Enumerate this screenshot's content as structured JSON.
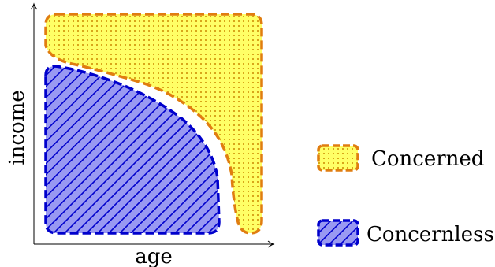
{
  "diagram": {
    "axes": {
      "x_label": "age",
      "y_label": "income"
    },
    "regions": [
      {
        "id": "concerned",
        "label": "Concerned",
        "fill": "#ffff66",
        "pattern": "dots",
        "pattern_color": "#cc8a00",
        "border": "#e07d10",
        "border_style": "dashed"
      },
      {
        "id": "concernless",
        "label": "Concernless",
        "fill": "#9999f2",
        "pattern": "diagonal-hatch",
        "pattern_color": "#0000cc",
        "border": "#0000cc",
        "border_style": "dashed"
      }
    ]
  }
}
